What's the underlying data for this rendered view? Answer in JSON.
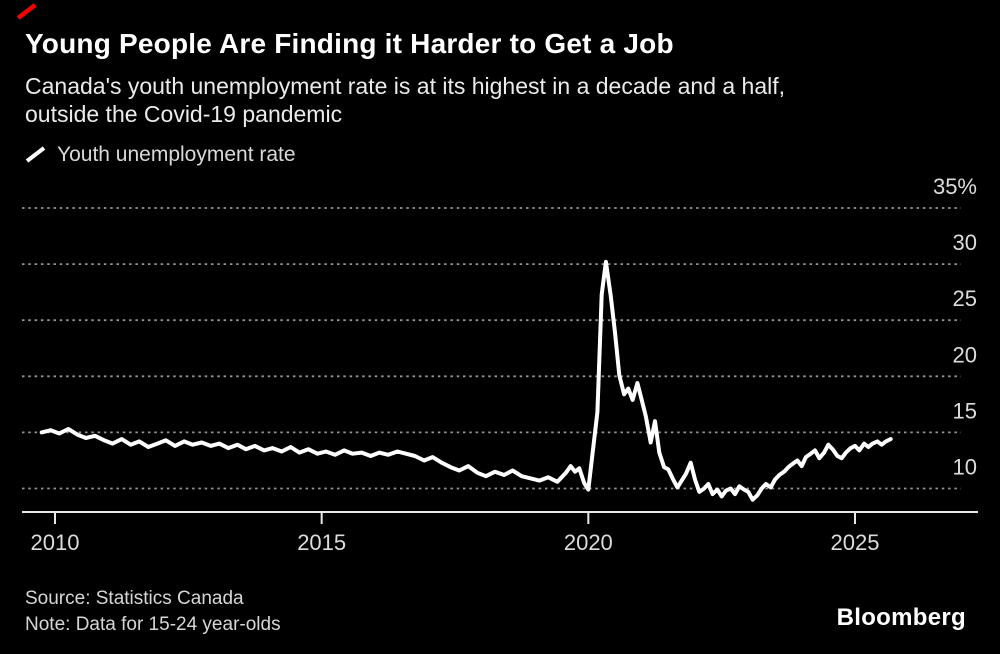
{
  "header": {
    "title": "Young People Are Finding it Harder to Get a Job",
    "subtitle_line1": "Canada's youth unemployment rate is at its highest in a decade and a half,",
    "subtitle_line2": "outside the Covid-19 pandemic"
  },
  "legend": {
    "label": "Youth unemployment rate",
    "series_color": "#ffffff"
  },
  "footer": {
    "source": "Source: Statistics Canada",
    "note": "Note: Data for 15-24 year-olds",
    "brand": "Bloomberg"
  },
  "colors": {
    "background": "#000000",
    "accent_red": "#f50000",
    "line": "#ffffff",
    "grid": "#949494",
    "axis": "#e8e8e8",
    "tick_text": "#dcdcdc"
  },
  "chart_data": {
    "type": "line",
    "title": "Youth unemployment rate",
    "xlabel": "",
    "ylabel": "",
    "unit": "%",
    "grid": "dashed-horizontal",
    "legend_position": "top-left",
    "xlim": [
      2009.38,
      2027.3
    ],
    "ylim": [
      7.9,
      37.4
    ],
    "y_ticks": [
      {
        "value": 35,
        "label": "35%"
      },
      {
        "value": 30,
        "label": "30"
      },
      {
        "value": 25,
        "label": "25"
      },
      {
        "value": 20,
        "label": "20"
      },
      {
        "value": 15,
        "label": "15"
      },
      {
        "value": 10,
        "label": "10"
      }
    ],
    "x_ticks": [
      {
        "value": 2010,
        "label": "2010"
      },
      {
        "value": 2015,
        "label": "2015"
      },
      {
        "value": 2020,
        "label": "2020"
      },
      {
        "value": 2025,
        "label": "2025"
      }
    ],
    "points": [
      [
        2009.75,
        15.0
      ],
      [
        2009.92,
        15.2
      ],
      [
        2010.08,
        14.9
      ],
      [
        2010.25,
        15.3
      ],
      [
        2010.42,
        14.8
      ],
      [
        2010.58,
        14.5
      ],
      [
        2010.75,
        14.7
      ],
      [
        2010.92,
        14.3
      ],
      [
        2011.08,
        14.0
      ],
      [
        2011.25,
        14.4
      ],
      [
        2011.42,
        13.9
      ],
      [
        2011.58,
        14.2
      ],
      [
        2011.75,
        13.7
      ],
      [
        2011.92,
        14.0
      ],
      [
        2012.08,
        14.3
      ],
      [
        2012.25,
        13.8
      ],
      [
        2012.42,
        14.2
      ],
      [
        2012.58,
        13.9
      ],
      [
        2012.75,
        14.1
      ],
      [
        2012.92,
        13.8
      ],
      [
        2013.08,
        14.0
      ],
      [
        2013.25,
        13.6
      ],
      [
        2013.42,
        13.9
      ],
      [
        2013.58,
        13.5
      ],
      [
        2013.75,
        13.8
      ],
      [
        2013.92,
        13.4
      ],
      [
        2014.08,
        13.6
      ],
      [
        2014.25,
        13.3
      ],
      [
        2014.42,
        13.7
      ],
      [
        2014.58,
        13.2
      ],
      [
        2014.75,
        13.5
      ],
      [
        2014.92,
        13.1
      ],
      [
        2015.08,
        13.3
      ],
      [
        2015.25,
        13.0
      ],
      [
        2015.42,
        13.4
      ],
      [
        2015.58,
        13.1
      ],
      [
        2015.75,
        13.2
      ],
      [
        2015.92,
        12.9
      ],
      [
        2016.08,
        13.2
      ],
      [
        2016.25,
        13.0
      ],
      [
        2016.42,
        13.3
      ],
      [
        2016.58,
        13.1
      ],
      [
        2016.75,
        12.9
      ],
      [
        2016.92,
        12.5
      ],
      [
        2017.08,
        12.8
      ],
      [
        2017.25,
        12.3
      ],
      [
        2017.42,
        11.9
      ],
      [
        2017.58,
        11.6
      ],
      [
        2017.75,
        12.0
      ],
      [
        2017.92,
        11.4
      ],
      [
        2018.08,
        11.1
      ],
      [
        2018.25,
        11.5
      ],
      [
        2018.42,
        11.2
      ],
      [
        2018.58,
        11.6
      ],
      [
        2018.75,
        11.1
      ],
      [
        2018.92,
        10.9
      ],
      [
        2019.08,
        10.7
      ],
      [
        2019.25,
        11.0
      ],
      [
        2019.42,
        10.6
      ],
      [
        2019.58,
        11.4
      ],
      [
        2019.67,
        12.0
      ],
      [
        2019.75,
        11.5
      ],
      [
        2019.83,
        11.8
      ],
      [
        2019.92,
        10.5
      ],
      [
        2020.0,
        9.9
      ],
      [
        2020.17,
        16.8
      ],
      [
        2020.25,
        27.3
      ],
      [
        2020.33,
        30.2
      ],
      [
        2020.42,
        27.2
      ],
      [
        2020.5,
        23.9
      ],
      [
        2020.58,
        20.1
      ],
      [
        2020.67,
        18.4
      ],
      [
        2020.75,
        18.9
      ],
      [
        2020.83,
        17.9
      ],
      [
        2020.92,
        19.4
      ],
      [
        2021.0,
        17.9
      ],
      [
        2021.08,
        16.4
      ],
      [
        2021.17,
        14.1
      ],
      [
        2021.25,
        16.0
      ],
      [
        2021.33,
        13.2
      ],
      [
        2021.42,
        11.9
      ],
      [
        2021.5,
        11.7
      ],
      [
        2021.58,
        10.9
      ],
      [
        2021.67,
        10.1
      ],
      [
        2021.75,
        10.7
      ],
      [
        2021.83,
        11.3
      ],
      [
        2021.92,
        12.3
      ],
      [
        2022.0,
        10.8
      ],
      [
        2022.08,
        9.7
      ],
      [
        2022.17,
        10.0
      ],
      [
        2022.25,
        10.4
      ],
      [
        2022.33,
        9.5
      ],
      [
        2022.42,
        9.9
      ],
      [
        2022.5,
        9.3
      ],
      [
        2022.58,
        9.8
      ],
      [
        2022.67,
        10.0
      ],
      [
        2022.75,
        9.5
      ],
      [
        2022.83,
        10.2
      ],
      [
        2022.92,
        9.9
      ],
      [
        2023.0,
        9.7
      ],
      [
        2023.08,
        9.0
      ],
      [
        2023.17,
        9.4
      ],
      [
        2023.25,
        10.0
      ],
      [
        2023.33,
        10.4
      ],
      [
        2023.42,
        10.1
      ],
      [
        2023.5,
        10.8
      ],
      [
        2023.58,
        11.2
      ],
      [
        2023.67,
        11.5
      ],
      [
        2023.75,
        11.9
      ],
      [
        2023.83,
        12.2
      ],
      [
        2023.92,
        12.5
      ],
      [
        2024.0,
        12.0
      ],
      [
        2024.08,
        12.8
      ],
      [
        2024.17,
        13.1
      ],
      [
        2024.25,
        13.4
      ],
      [
        2024.33,
        12.7
      ],
      [
        2024.42,
        13.2
      ],
      [
        2024.5,
        13.9
      ],
      [
        2024.58,
        13.5
      ],
      [
        2024.67,
        12.9
      ],
      [
        2024.75,
        12.7
      ],
      [
        2024.83,
        13.2
      ],
      [
        2024.92,
        13.6
      ],
      [
        2025.0,
        13.8
      ],
      [
        2025.08,
        13.4
      ],
      [
        2025.17,
        14.0
      ],
      [
        2025.25,
        13.7
      ],
      [
        2025.33,
        14.0
      ],
      [
        2025.42,
        14.2
      ],
      [
        2025.5,
        13.9
      ],
      [
        2025.58,
        14.2
      ],
      [
        2025.67,
        14.4
      ]
    ]
  }
}
